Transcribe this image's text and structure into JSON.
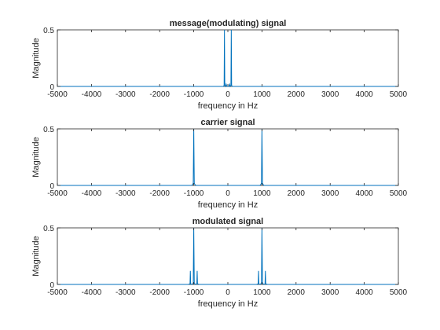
{
  "chart_data": [
    {
      "type": "line",
      "title": "message(modulating) signal",
      "xlabel": "frequency in Hz",
      "ylabel": "Magnitude",
      "xlim": [
        -5000,
        5000
      ],
      "ylim": [
        0,
        0.5
      ],
      "xticks": [
        -5000,
        -4000,
        -3000,
        -2000,
        -1000,
        0,
        1000,
        2000,
        3000,
        4000,
        5000
      ],
      "xtick_labels": [
        "-5000",
        "-4000",
        "-3000",
        "-2000",
        "-1000",
        "0",
        "1000",
        "2000",
        "3000",
        "4000",
        "5000"
      ],
      "yticks": [
        0,
        0.5
      ],
      "ytick_labels": [
        "0",
        "0.5"
      ],
      "grid": false,
      "line_color": "#0072BD",
      "series": [
        {
          "x": [
            -5000,
            -170,
            -150,
            -130,
            -110,
            -100,
            -90,
            -70,
            -50,
            -30,
            0,
            30,
            50,
            70,
            90,
            100,
            110,
            130,
            150,
            170,
            5000
          ],
          "values": [
            0,
            0,
            0,
            0,
            0.01,
            0.5,
            0.01,
            0,
            0.02,
            0,
            0,
            0,
            0.02,
            0,
            0.01,
            0.5,
            0.01,
            0,
            0,
            0,
            0
          ]
        }
      ]
    },
    {
      "type": "line",
      "title": "carrier signal",
      "xlabel": "frequency in Hz",
      "ylabel": "Magnitude",
      "xlim": [
        -5000,
        5000
      ],
      "ylim": [
        0,
        0.5
      ],
      "xticks": [
        -5000,
        -4000,
        -3000,
        -2000,
        -1000,
        0,
        1000,
        2000,
        3000,
        4000,
        5000
      ],
      "xtick_labels": [
        "-5000",
        "-4000",
        "-3000",
        "-2000",
        "-1000",
        "0",
        "1000",
        "2000",
        "3000",
        "4000",
        "5000"
      ],
      "yticks": [
        0,
        0.5
      ],
      "ytick_labels": [
        "0",
        "0.5"
      ],
      "grid": false,
      "line_color": "#0072BD",
      "series": [
        {
          "x": [
            -5000,
            -1060,
            -1030,
            -1015,
            -1000,
            -985,
            -970,
            -940,
            940,
            970,
            985,
            1000,
            1015,
            1030,
            1060,
            5000
          ],
          "values": [
            0,
            0,
            0.01,
            0.02,
            0.5,
            0.02,
            0.01,
            0,
            0,
            0.01,
            0.02,
            0.5,
            0.02,
            0.01,
            0,
            0
          ]
        }
      ]
    },
    {
      "type": "line",
      "title": "modulated signal",
      "xlabel": "frequency in Hz",
      "ylabel": "Magnitude",
      "xlim": [
        -5000,
        5000
      ],
      "ylim": [
        0,
        0.5
      ],
      "xticks": [
        -5000,
        -4000,
        -3000,
        -2000,
        -1000,
        0,
        1000,
        2000,
        3000,
        4000,
        5000
      ],
      "xtick_labels": [
        "-5000",
        "-4000",
        "-3000",
        "-2000",
        "-1000",
        "0",
        "1000",
        "2000",
        "3000",
        "4000",
        "5000"
      ],
      "yticks": [
        0,
        0.5
      ],
      "ytick_labels": [
        "0",
        "0.5"
      ],
      "grid": false,
      "line_color": "#0072BD",
      "series": [
        {
          "x": [
            -5000,
            -1160,
            -1110,
            -1100,
            -1090,
            -1060,
            -1015,
            -1000,
            -985,
            -940,
            -910,
            -900,
            -890,
            -840,
            840,
            890,
            900,
            910,
            940,
            985,
            1000,
            1015,
            1060,
            1090,
            1100,
            1110,
            1160,
            5000
          ],
          "values": [
            0,
            0,
            0.005,
            0.12,
            0.005,
            0,
            0.01,
            0.5,
            0.01,
            0,
            0.005,
            0.12,
            0.005,
            0,
            0,
            0.005,
            0.12,
            0.005,
            0,
            0.01,
            0.5,
            0.01,
            0,
            0.005,
            0.12,
            0.005,
            0,
            0
          ]
        }
      ]
    }
  ]
}
